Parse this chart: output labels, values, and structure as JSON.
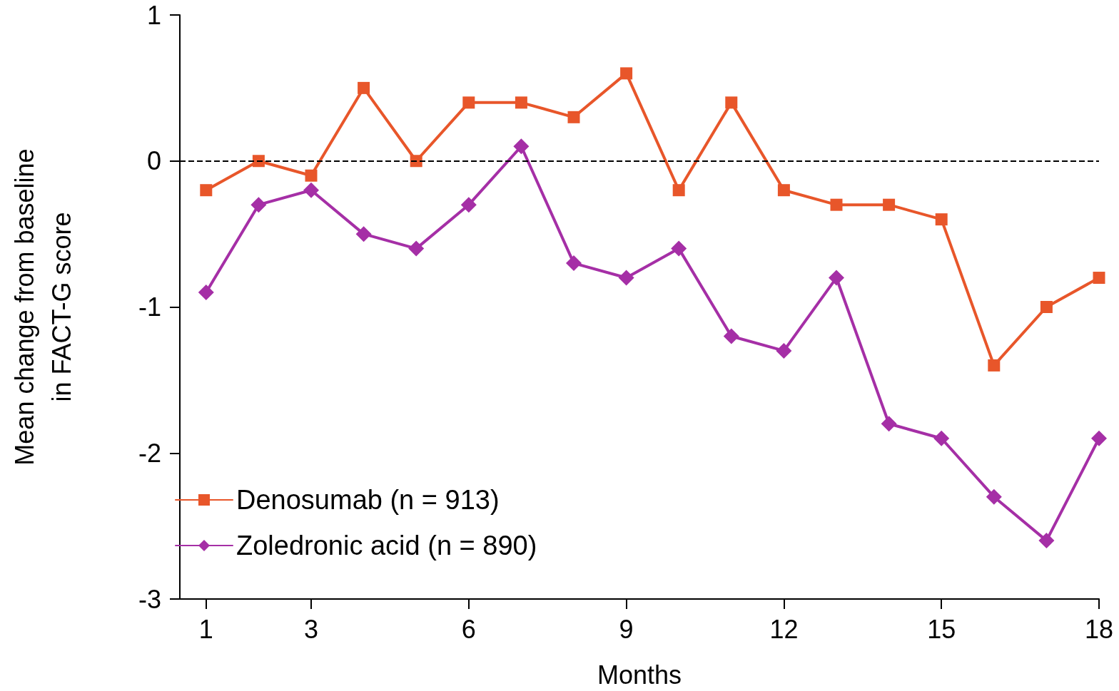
{
  "chart_data": {
    "type": "line",
    "xlabel": "Months",
    "ylabel": "Mean change from baseline\nin FACT-G score",
    "x": [
      1,
      2,
      3,
      4,
      5,
      6,
      7,
      8,
      9,
      10,
      11,
      12,
      13,
      14,
      15,
      16,
      17,
      18
    ],
    "series": [
      {
        "name": "Denosumab (n = 913)",
        "color": "#e8562a",
        "marker": "square",
        "values": [
          -0.2,
          0,
          -0.1,
          0.5,
          0,
          0.4,
          0.4,
          0.3,
          0.6,
          -0.2,
          0.4,
          -0.2,
          -0.3,
          -0.3,
          -0.4,
          -1.4,
          -1.0,
          -0.8
        ]
      },
      {
        "name": "Zoledronic acid (n = 890)",
        "color": "#a52fa6",
        "marker": "diamond",
        "values": [
          -0.9,
          -0.3,
          -0.2,
          -0.5,
          -0.6,
          -0.3,
          0.1,
          -0.7,
          -0.8,
          -0.6,
          -1.2,
          -1.3,
          -0.8,
          -1.8,
          -1.9,
          -2.3,
          -2.6,
          -1.9
        ]
      }
    ],
    "xlim": [
      0.5,
      18
    ],
    "xticks": [
      1,
      3,
      6,
      9,
      12,
      15,
      18
    ],
    "ylim": [
      -3,
      1
    ],
    "yticks": [
      -3,
      -2,
      -1,
      0,
      1
    ],
    "ref_lines": [
      {
        "axis": "y",
        "value": 0,
        "label": null,
        "line_style": "dashed",
        "color": "#000000"
      }
    ],
    "grid": false,
    "legend": "bottom left",
    "line_style": "solid"
  }
}
